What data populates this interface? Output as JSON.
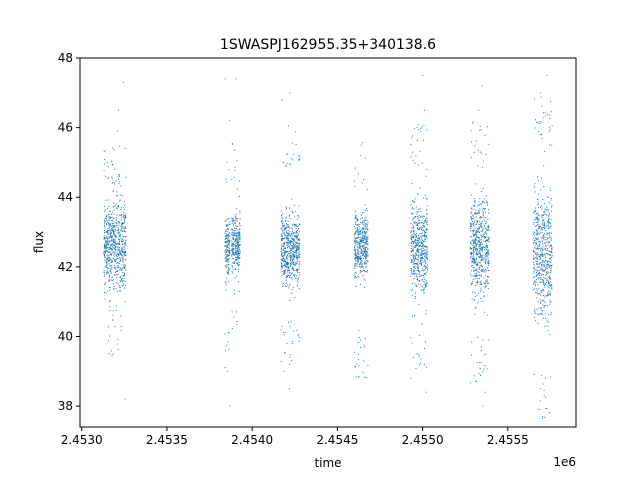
{
  "chart_data": {
    "type": "scatter",
    "title": "1SWASPJ162955.35+340138.6",
    "xlabel": "time",
    "ylabel": "flux",
    "x_offset_label": "1e6",
    "xlim": [
      2452990,
      2455900
    ],
    "ylim": [
      37.4,
      48
    ],
    "x_ticks": [
      2453000,
      2453500,
      2454000,
      2454500,
      2455000,
      2455500
    ],
    "x_tick_labels": [
      "2.4530",
      "2.4535",
      "2.4540",
      "2.4545",
      "2.4550",
      "2.4555"
    ],
    "y_ticks": [
      38,
      40,
      42,
      44,
      46,
      48
    ],
    "y_tick_labels": [
      "38",
      "40",
      "42",
      "44",
      "46",
      "48"
    ],
    "grid": false,
    "point_color": "#1f77b4",
    "series": [
      {
        "segments": [
          {
            "x_start": 2453130,
            "x_end": 2453260,
            "center": 42.6,
            "core_spread": 0.8,
            "envelope": [
              40.8,
              44.2
            ],
            "outliers": [
              38.2,
              39.5,
              46.5,
              47.3,
              45.9
            ]
          },
          {
            "x_start": 2453840,
            "x_end": 2453870,
            "center": 42.5,
            "core_spread": 0.6,
            "envelope": [
              40.5,
              44.0
            ],
            "outliers": [
              38.0,
              39.0,
              46.2,
              47.4
            ]
          },
          {
            "x_start": 2453880,
            "x_end": 2453930,
            "center": 42.7,
            "core_spread": 0.5,
            "envelope": [
              41.6,
              44.2
            ],
            "outliers": [
              47.4
            ]
          },
          {
            "x_start": 2454170,
            "x_end": 2454280,
            "center": 42.5,
            "core_spread": 0.7,
            "envelope": [
              40.5,
              44.8
            ],
            "outliers": [
              38.5,
              39.0,
              46.8,
              47.0
            ]
          },
          {
            "x_start": 2454600,
            "x_end": 2454680,
            "center": 42.6,
            "core_spread": 0.6,
            "envelope": [
              40.2,
              44.2
            ],
            "outliers": [
              39.3,
              45.5
            ]
          },
          {
            "x_start": 2454930,
            "x_end": 2455030,
            "center": 42.6,
            "core_spread": 0.9,
            "envelope": [
              40.4,
              44.7
            ],
            "outliers": [
              38.4,
              38.8,
              46.5,
              47.5
            ]
          },
          {
            "x_start": 2455280,
            "x_end": 2455390,
            "center": 42.6,
            "core_spread": 0.9,
            "envelope": [
              40.0,
              44.8
            ],
            "outliers": [
              38.0,
              38.4,
              46.5,
              47.2
            ]
          },
          {
            "x_start": 2455650,
            "x_end": 2455760,
            "center": 42.4,
            "core_spread": 1.2,
            "envelope": [
              39.0,
              45.5
            ],
            "outliers": [
              37.9,
              38.5,
              46.0,
              47.0,
              47.5
            ]
          }
        ]
      }
    ]
  }
}
